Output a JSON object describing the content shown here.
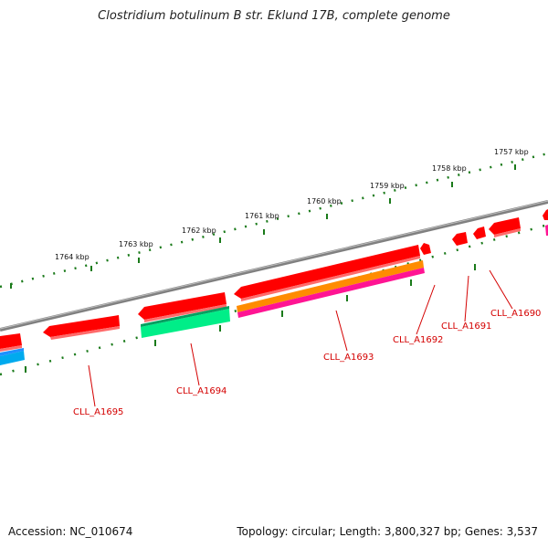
{
  "title": "Clostridium botulinum B str. Eklund 17B, complete genome",
  "footer": {
    "accession": "Accession: NC_010674",
    "stats": "Topology: circular; Length: 3,800,327 bp; Genes: 3,537"
  },
  "kbp_labels": [
    "1757 kbp",
    "1758 kbp",
    "1759 kbp",
    "1760 kbp",
    "1761 kbp",
    "1762 kbp",
    "1763 kbp",
    "1764 kbp"
  ],
  "gene_labels": [
    "CLL_A1690",
    "CLL_A1691",
    "CLL_A1692",
    "CLL_A1693",
    "CLL_A1694",
    "CLL_A1695"
  ],
  "colors": {
    "backbone": "#808080",
    "gene_red": "#ff0000",
    "gene_orange": "#ff8c00",
    "gene_magenta": "#ff1493",
    "gene_spring": "#00ee88",
    "gene_blue": "#00aaee",
    "tick": "#1a7a1a",
    "label": "#d40000"
  }
}
